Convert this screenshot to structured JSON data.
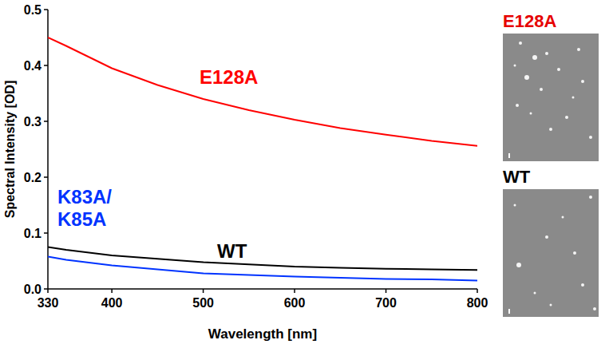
{
  "chart_data": {
    "type": "line",
    "x_label": "Wavelength [nm]",
    "y_label": "Spectral Intensity [OD]",
    "x": [
      330,
      350,
      400,
      450,
      500,
      550,
      600,
      650,
      700,
      750,
      800
    ],
    "series": [
      {
        "name": "E128A",
        "color": "#ff0000",
        "values": [
          0.45,
          0.435,
          0.395,
          0.365,
          0.34,
          0.32,
          0.303,
          0.288,
          0.276,
          0.265,
          0.256
        ]
      },
      {
        "name": "WT",
        "color": "#000000",
        "values": [
          0.075,
          0.07,
          0.06,
          0.054,
          0.048,
          0.044,
          0.04,
          0.038,
          0.036,
          0.035,
          0.034
        ]
      },
      {
        "name": "K83A/K85A",
        "color": "#0033ff",
        "values": [
          0.058,
          0.052,
          0.042,
          0.035,
          0.028,
          0.025,
          0.022,
          0.02,
          0.018,
          0.017,
          0.015
        ]
      }
    ],
    "xlim": [
      330,
      800
    ],
    "ylim": [
      0,
      0.5
    ],
    "xticks": [
      330,
      400,
      500,
      600,
      700,
      800
    ],
    "yticks": [
      {
        "value": 0,
        "label": "0.0"
      },
      0.1,
      0.2,
      0.3,
      0.4,
      0.5
    ],
    "grid": false
  },
  "panels": [
    {
      "label": "E128A",
      "color": "#e60000"
    },
    {
      "label": "WT",
      "color": "#000000"
    }
  ]
}
